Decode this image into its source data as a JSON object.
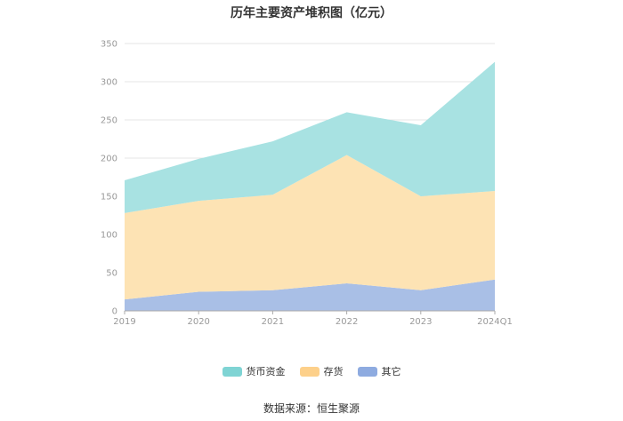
{
  "chart_data": {
    "type": "area",
    "stacked": true,
    "title": "历年主要资产堆积图（亿元）",
    "categories": [
      "2019",
      "2020",
      "2021",
      "2022",
      "2023",
      "2024Q1"
    ],
    "series": [
      {
        "name": "其它",
        "values": [
          15,
          25,
          27,
          36,
          27,
          41
        ],
        "color": "#a9bfe6"
      },
      {
        "name": "存货",
        "values": [
          113,
          119,
          125,
          168,
          123,
          116
        ],
        "color": "#fde3b4"
      },
      {
        "name": "货币资金",
        "values": [
          43,
          55,
          70,
          56,
          93,
          169
        ],
        "color": "#a8e2e2"
      }
    ],
    "legend_order": [
      "货币资金",
      "存货",
      "其它"
    ],
    "legend_colors": {
      "货币资金": "#7fd4d4",
      "存货": "#fdd08a",
      "其它": "#8eabe0"
    },
    "ylim": [
      0,
      350
    ],
    "yticks": [
      0,
      50,
      100,
      150,
      200,
      250,
      300,
      350
    ],
    "grid": true,
    "legend_position": "bottom-center",
    "source": "数据来源：恒生聚源"
  }
}
